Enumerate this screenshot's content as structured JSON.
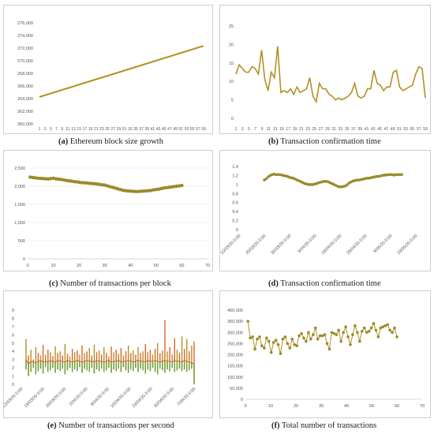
{
  "colors": {
    "gold": "#b29124",
    "olive": "#9a8a2a",
    "green": "#6aa33a",
    "orange": "#e0622b",
    "grid": "#e6e6e6"
  },
  "captions": [
    {
      "letter": "(a)",
      "text": "Ethereum block size growth"
    },
    {
      "letter": "(b)",
      "text": "Transaction confirmation time"
    },
    {
      "letter": "(c)",
      "text": "Number of transactions per block"
    },
    {
      "letter": "(d)",
      "text": "Transaction confirmation time"
    },
    {
      "letter": "(e)",
      "text": "Number of transactions per second"
    },
    {
      "letter": "(f)",
      "text": "Total number of transactions"
    }
  ],
  "chart_data": [
    {
      "type": "line",
      "x": [
        1,
        59
      ],
      "y": [
        264800,
        273900
      ],
      "ylim": [
        260000,
        278000
      ],
      "yticks": [
        "260,000",
        "262,000",
        "264,000",
        "266,000",
        "268,000",
        "270,000",
        "272,000",
        "274,000",
        "276,000"
      ],
      "xticks": [
        "1",
        "3",
        "5",
        "7",
        "9",
        "11",
        "13",
        "15",
        "17",
        "19",
        "21",
        "23",
        "25",
        "27",
        "29",
        "31",
        "33",
        "35",
        "37",
        "39",
        "41",
        "43",
        "45",
        "47",
        "49",
        "51",
        "53",
        "55",
        "57",
        "59"
      ],
      "grid": false
    },
    {
      "type": "line",
      "values": [
        12,
        14.5,
        13.5,
        12.5,
        12.5,
        14,
        13.5,
        12,
        18.5,
        10.5,
        7.5,
        12.5,
        11,
        19.5,
        7,
        7.5,
        7,
        8,
        6.5,
        8.5,
        7,
        7.5,
        8,
        11,
        6,
        4.5,
        9.5,
        8,
        8,
        6.5,
        6,
        5,
        5.5,
        5,
        5.5,
        6,
        7,
        9.5,
        6,
        5.5,
        6,
        8,
        8,
        13,
        9.5,
        9,
        7.5,
        8.5,
        8.5,
        12.5,
        13,
        8.5,
        7.5,
        8,
        8.5,
        9,
        12,
        14,
        13.5,
        5.5
      ],
      "ylim": [
        0,
        25
      ],
      "yticks": [
        "0",
        "5",
        "10",
        "15",
        "20",
        "25"
      ],
      "xticks": [
        "1",
        "3",
        "5",
        "7",
        "9",
        "11",
        "13",
        "15",
        "17",
        "19",
        "21",
        "23",
        "25",
        "27",
        "29",
        "31",
        "33",
        "35",
        "37",
        "39",
        "41",
        "43",
        "45",
        "47",
        "49",
        "51",
        "53",
        "55",
        "57",
        "59"
      ],
      "grid": false
    },
    {
      "type": "scatter",
      "values": [
        2250,
        2240,
        2230,
        2220,
        2215,
        2210,
        2205,
        2200,
        2210,
        2220,
        2205,
        2195,
        2185,
        2175,
        2160,
        2150,
        2140,
        2130,
        2120,
        2110,
        2100,
        2095,
        2090,
        2080,
        2075,
        2070,
        2060,
        2050,
        2040,
        2030,
        2010,
        1990,
        1970,
        1950,
        1930,
        1910,
        1890,
        1880,
        1870,
        1865,
        1860,
        1855,
        1855,
        1860,
        1865,
        1870,
        1875,
        1885,
        1900,
        1910,
        1920,
        1935,
        1950,
        1960,
        1970,
        1980,
        1990,
        2000,
        2010,
        2020
      ],
      "xlim": [
        0,
        70
      ],
      "ylim": [
        0,
        2500
      ],
      "yticks": [
        "0",
        "500",
        "1,000",
        "1,500",
        "2,000",
        "2,500"
      ],
      "xticks": [
        "0",
        "10",
        "20",
        "30",
        "40",
        "50",
        "60",
        "70"
      ],
      "grid": true
    },
    {
      "type": "scatter",
      "values": [
        1.1,
        1.13,
        1.17,
        1.2,
        1.22,
        1.23,
        1.22,
        1.22,
        1.22,
        1.21,
        1.2,
        1.19,
        1.18,
        1.16,
        1.15,
        1.14,
        1.12,
        1.1,
        1.08,
        1.06,
        1.04,
        1.02,
        1.01,
        1.0,
        1.0,
        1.0,
        1.01,
        1.02,
        1.04,
        1.05,
        1.06,
        1.07,
        1.07,
        1.06,
        1.04,
        1.02,
        1.0,
        0.98,
        0.96,
        0.95,
        0.95,
        0.96,
        0.97,
        1.0,
        1.04,
        1.06,
        1.08,
        1.09,
        1.1,
        1.1,
        1.11,
        1.12,
        1.13,
        1.14,
        1.14,
        1.15,
        1.16,
        1.17,
        1.18,
        1.18,
        1.19,
        1.2,
        1.21,
        1.21,
        1.22,
        1.22,
        1.22,
        1.21,
        1.22,
        1.22,
        1.22,
        1.22
      ],
      "ylim": [
        0,
        1.4
      ],
      "yticks": [
        "0",
        "0.2",
        "0.4",
        "0.6",
        "0.8",
        "1",
        "1.2",
        "1.4"
      ],
      "xticks": [
        "10/03/20 0:00",
        "20/03/20 0:00",
        "30/03/20 0:00",
        "9/04/20 0:00",
        "19/04/20 0:00",
        "29/04/20 0:00",
        "9/05/20 0:00",
        "19/05/20 0:00"
      ],
      "grid": false
    },
    {
      "type": "line",
      "n": 70,
      "low_series": "min",
      "high_series": "max",
      "lows": [
        1.8,
        1.0,
        1.5,
        2.0,
        1.2,
        1.6,
        1.9,
        1.3,
        2.1,
        1.5,
        1.7,
        2.0,
        1.4,
        1.8,
        1.6,
        1.9,
        1.2,
        1.7,
        2.0,
        1.5,
        1.8,
        1.6,
        2.1,
        1.4,
        1.9,
        1.7,
        1.5,
        2.0,
        1.3,
        1.8,
        1.6,
        1.9,
        1.5,
        1.7,
        2.0,
        1.4,
        1.8,
        1.6,
        1.9,
        1.5,
        2.1,
        1.7,
        1.4,
        1.8,
        1.6,
        2.0,
        1.5,
        1.9,
        1.7,
        1.3,
        1.8,
        1.6,
        2.0,
        1.5,
        1.2,
        1.9,
        1.7,
        1.4,
        1.8,
        1.6,
        2.0,
        1.5,
        1.7,
        1.9,
        1.6,
        1.8,
        1.5,
        1.7,
        1.9,
        0.0
      ],
      "highs": [
        5.5,
        3.5,
        4.2,
        3.0,
        4.5,
        3.8,
        3.5,
        4.8,
        3.6,
        4.2,
        3.9,
        3.4,
        4.6,
        3.8,
        4.0,
        3.5,
        4.9,
        3.7,
        3.4,
        4.3,
        3.9,
        4.1,
        3.6,
        4.7,
        3.8,
        4.0,
        4.4,
        3.5,
        4.8,
        3.9,
        4.1,
        3.6,
        4.5,
        3.8,
        3.4,
        4.6,
        3.9,
        4.2,
        3.7,
        4.4,
        3.5,
        4.0,
        4.7,
        3.8,
        4.1,
        3.6,
        4.5,
        3.8,
        4.0,
        4.9,
        3.9,
        4.2,
        3.6,
        4.3,
        5.0,
        3.8,
        4.1,
        7.8,
        4.0,
        4.5,
        3.6,
        5.6,
        4.2,
        3.8,
        5.8,
        4.3,
        5.5,
        4.0,
        4.7,
        5.2
      ],
      "mids": [
        3.0,
        2.4,
        2.8,
        2.7,
        2.6,
        2.8,
        2.9,
        2.7,
        2.8,
        2.7,
        2.9,
        2.8,
        2.7,
        2.9,
        2.8,
        2.8,
        2.7,
        2.9,
        2.8,
        2.7,
        2.8,
        2.9,
        2.8,
        2.7,
        2.8,
        2.9,
        2.8,
        2.8,
        2.7,
        2.9,
        2.8,
        2.8,
        2.7,
        2.8,
        2.9,
        2.7,
        2.8,
        2.8,
        2.9,
        2.7,
        2.8,
        2.8,
        2.9,
        2.8,
        2.7,
        2.8,
        2.9,
        2.8,
        2.8,
        2.7,
        2.9,
        2.8,
        2.8,
        2.9,
        2.8,
        2.7,
        2.8,
        2.9,
        2.8,
        2.8,
        2.7,
        2.9,
        2.8,
        2.8,
        2.7,
        2.9,
        2.8,
        2.7,
        2.6,
        2.5
      ],
      "ylim": [
        0,
        9
      ],
      "yticks": [
        "0",
        "1",
        "2",
        "3",
        "4",
        "5",
        "6",
        "7",
        "8",
        "9"
      ],
      "xticks": [
        "12/03/20 0:00",
        "19/03/20 0:00",
        "26/03/20 0:00",
        "2/04/20 0:00",
        "9/04/20 0:00",
        "16/04/20 0:00",
        "23/04/20 0:00",
        "30/04/20 0:00",
        "7/05/20 0:00"
      ],
      "grid": false
    },
    {
      "type": "line",
      "values": [
        350000,
        275000,
        280000,
        225000,
        270000,
        280000,
        240000,
        230000,
        275000,
        260000,
        210000,
        255000,
        265000,
        245000,
        205000,
        270000,
        280000,
        250000,
        230000,
        270000,
        245000,
        240000,
        285000,
        295000,
        275000,
        260000,
        300000,
        270000,
        290000,
        320000,
        270000,
        285000,
        285000,
        290000,
        250000,
        225000,
        300000,
        295000,
        290000,
        310000,
        260000,
        300000,
        325000,
        280000,
        245000,
        290000,
        330000,
        300000,
        260000,
        305000,
        320000,
        300000,
        305000,
        320000,
        340000,
        310000,
        280000,
        320000,
        325000,
        330000,
        335000,
        310000,
        300000,
        320000,
        280000
      ],
      "xlim": [
        0,
        70
      ],
      "ylim": [
        0,
        400000
      ],
      "yticks": [
        "0",
        "50,000",
        "100,000",
        "150,000",
        "200,000",
        "250,000",
        "300,000",
        "350,000",
        "400,000"
      ],
      "xticks": [
        "0",
        "10",
        "20",
        "30",
        "40",
        "50",
        "60",
        "70"
      ],
      "grid": false
    }
  ]
}
